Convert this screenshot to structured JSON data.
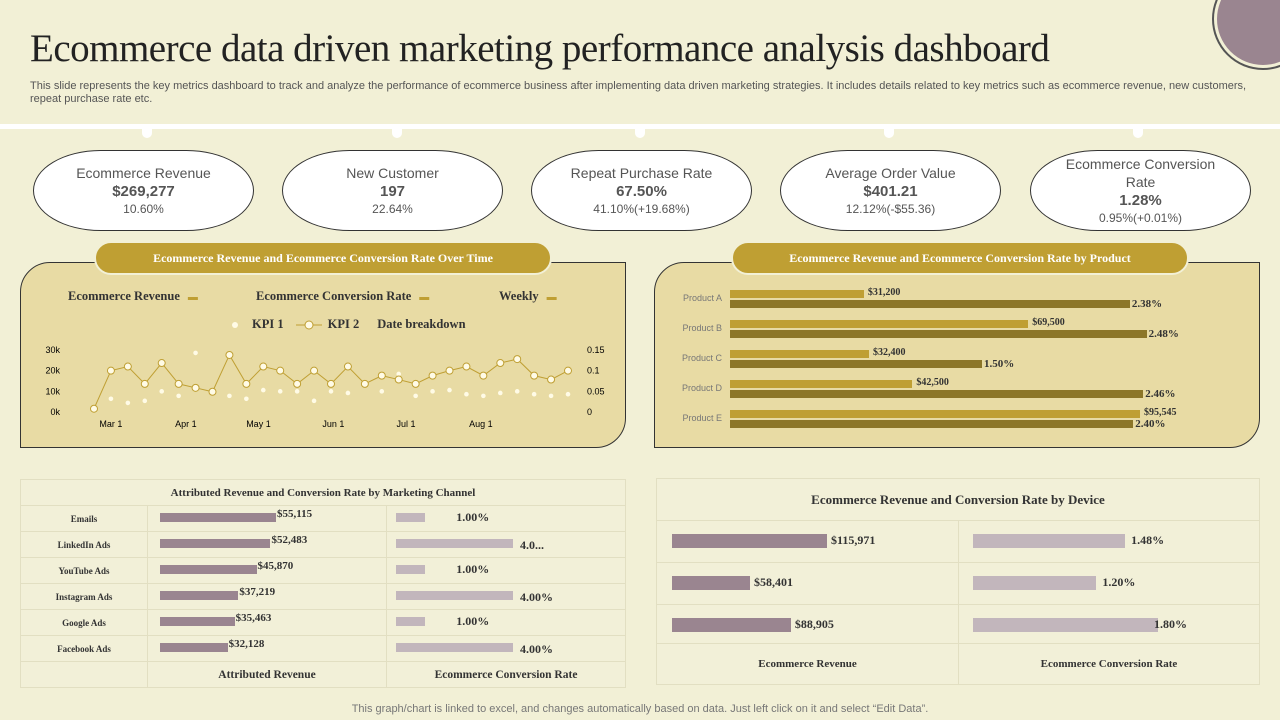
{
  "title": "Ecommerce data driven marketing performance analysis dashboard",
  "subtitle": "This slide represents the key metrics dashboard to track and analyze the performance of ecommerce business after implementing data driven marketing strategies. It includes details related to key metrics such as ecommerce revenue, new customers, repeat purchase rate etc.",
  "kpis": [
    {
      "label": "Ecommerce Revenue",
      "value": "$269,277",
      "sub": "10.60%"
    },
    {
      "label": "New Customer",
      "value": "197",
      "sub": "22.64%"
    },
    {
      "label": "Repeat Purchase Rate",
      "value": "67.50%",
      "sub": "41.10%(+19.68%)"
    },
    {
      "label": "Average  Order Value",
      "value": "$401.21",
      "sub": "12.12%(-$55.36)"
    },
    {
      "label": "Ecommerce Conversion Rate",
      "value": "1.28%",
      "sub": "0.95%(+0.01%)"
    }
  ],
  "colors": {
    "background": "#f2f0d6",
    "panel": "#e8dba4",
    "gold": "#bf9f33",
    "dark_gold": "#8c7628",
    "mauve": "#9a8590",
    "light_mauve": "#c2b6bc"
  },
  "time_panel": {
    "title": "Ecommerce Revenue and Ecommerce Conversion Rate Over Time",
    "selectors": [
      "Ecommerce Revenue",
      "Ecommerce Conversion Rate",
      "Weekly"
    ],
    "legend": {
      "kpi1": "KPI 1",
      "kpi2": "KPI 2",
      "breakdown": "Date breakdown"
    }
  },
  "product_panel": {
    "title": "Ecommerce Revenue and Ecommerce Conversion Rate by Product"
  },
  "channel_table": {
    "title": "Attributed Revenue and Conversion Rate by Marketing Channel",
    "col1": "Attributed Revenue",
    "col2": "Ecommerce Conversion Rate"
  },
  "device_table": {
    "title": "Ecommerce Revenue and Conversion Rate by Device",
    "col1": "Ecommerce Revenue",
    "col2": "Ecommerce Conversion Rate"
  },
  "footer": "This graph/chart is linked to excel, and changes automatically based on data. Just left click on it and select “Edit Data”.",
  "chart_data": [
    {
      "type": "line",
      "name": "time",
      "x_ticks": [
        "Mar 1",
        "Apr 1",
        "May 1",
        "Jun 1",
        "Jul 1",
        "Aug 1"
      ],
      "x_tick_dates": [
        "03-01",
        "04-01",
        "05-01",
        "06-01",
        "07-01",
        "08-01"
      ],
      "x": [
        "02-22",
        "03-01",
        "03-08",
        "03-15",
        "03-22",
        "03-29",
        "04-05",
        "04-12",
        "04-19",
        "04-26",
        "05-03",
        "05-10",
        "05-17",
        "05-24",
        "05-31",
        "06-07",
        "06-14",
        "06-21",
        "06-28",
        "07-05",
        "07-12",
        "07-19",
        "07-26",
        "08-02",
        "08-09",
        "08-16",
        "08-23",
        "08-30",
        "09-06"
      ],
      "y_left_ticks": [
        "0k",
        "10k",
        "20k",
        "30k"
      ],
      "y_left_range": [
        0,
        30000
      ],
      "y_right_ticks": [
        "0",
        "0.05",
        "0.1",
        "0.15"
      ],
      "y_right_range": [
        0,
        0.15
      ],
      "series": [
        {
          "name": "KPI 2",
          "axis": "left",
          "values": [
            1600,
            20000,
            22000,
            13600,
            23700,
            13600,
            11700,
            9800,
            27600,
            13600,
            22000,
            20000,
            13600,
            20000,
            13600,
            22000,
            13600,
            17600,
            15700,
            13600,
            17600,
            20000,
            22000,
            17600,
            23700,
            25600,
            17600,
            15700,
            20000
          ]
        },
        {
          "name": "KPI 1",
          "axis": "right",
          "values": [
            null,
            0.032,
            0.022,
            0.027,
            0.05,
            0.039,
            0.143,
            null,
            0.039,
            0.032,
            0.053,
            0.05,
            0.05,
            0.027,
            0.05,
            0.046,
            null,
            0.05,
            0.092,
            0.039,
            0.05,
            0.053,
            0.043,
            0.039,
            0.046,
            0.05,
            0.043,
            0.039,
            0.043
          ]
        }
      ]
    },
    {
      "type": "bar",
      "name": "product",
      "categories": [
        "Product A",
        "Product B",
        "Product C",
        "Product D",
        "Product E"
      ],
      "series": [
        {
          "values": [
            31200,
            69500,
            32400,
            42500,
            95545
          ],
          "labels": [
            "$31,200",
            "$69,500",
            "$32,400",
            "$42,500",
            "$95,545"
          ]
        },
        {
          "values": [
            2.38,
            2.48,
            1.5,
            2.46,
            2.4
          ],
          "labels": [
            "2.38%",
            "2.48%",
            "1.50%",
            "2.46%",
            "2.40%"
          ]
        }
      ]
    },
    {
      "type": "bar",
      "name": "channel",
      "categories": [
        "Emails",
        "LinkedIn Ads",
        "YouTube Ads",
        "Instagram Ads",
        "Google Ads",
        "Facebook  Ads"
      ],
      "series": [
        {
          "values": [
            55115,
            52483,
            45870,
            37219,
            35463,
            32128
          ],
          "labels": [
            "$55,115",
            "$52,483",
            "$45,870",
            "$37,219",
            "$35,463",
            "$32,128"
          ]
        },
        {
          "values": [
            1.0,
            4.0,
            1.0,
            4.0,
            1.0,
            4.0
          ],
          "labels": [
            "1.00%",
            "4.0...",
            "1.00%",
            "4.00%",
            "1.00%",
            "4.00%"
          ]
        }
      ]
    },
    {
      "type": "bar",
      "name": "device",
      "series": [
        {
          "values": [
            115971,
            58401,
            88905
          ],
          "labels": [
            "$115,971",
            "$58,401",
            "$88,905"
          ]
        },
        {
          "values": [
            1.48,
            1.2,
            1.8
          ],
          "labels": [
            "1.48%",
            "1.20%",
            "1.80%"
          ]
        }
      ]
    }
  ]
}
